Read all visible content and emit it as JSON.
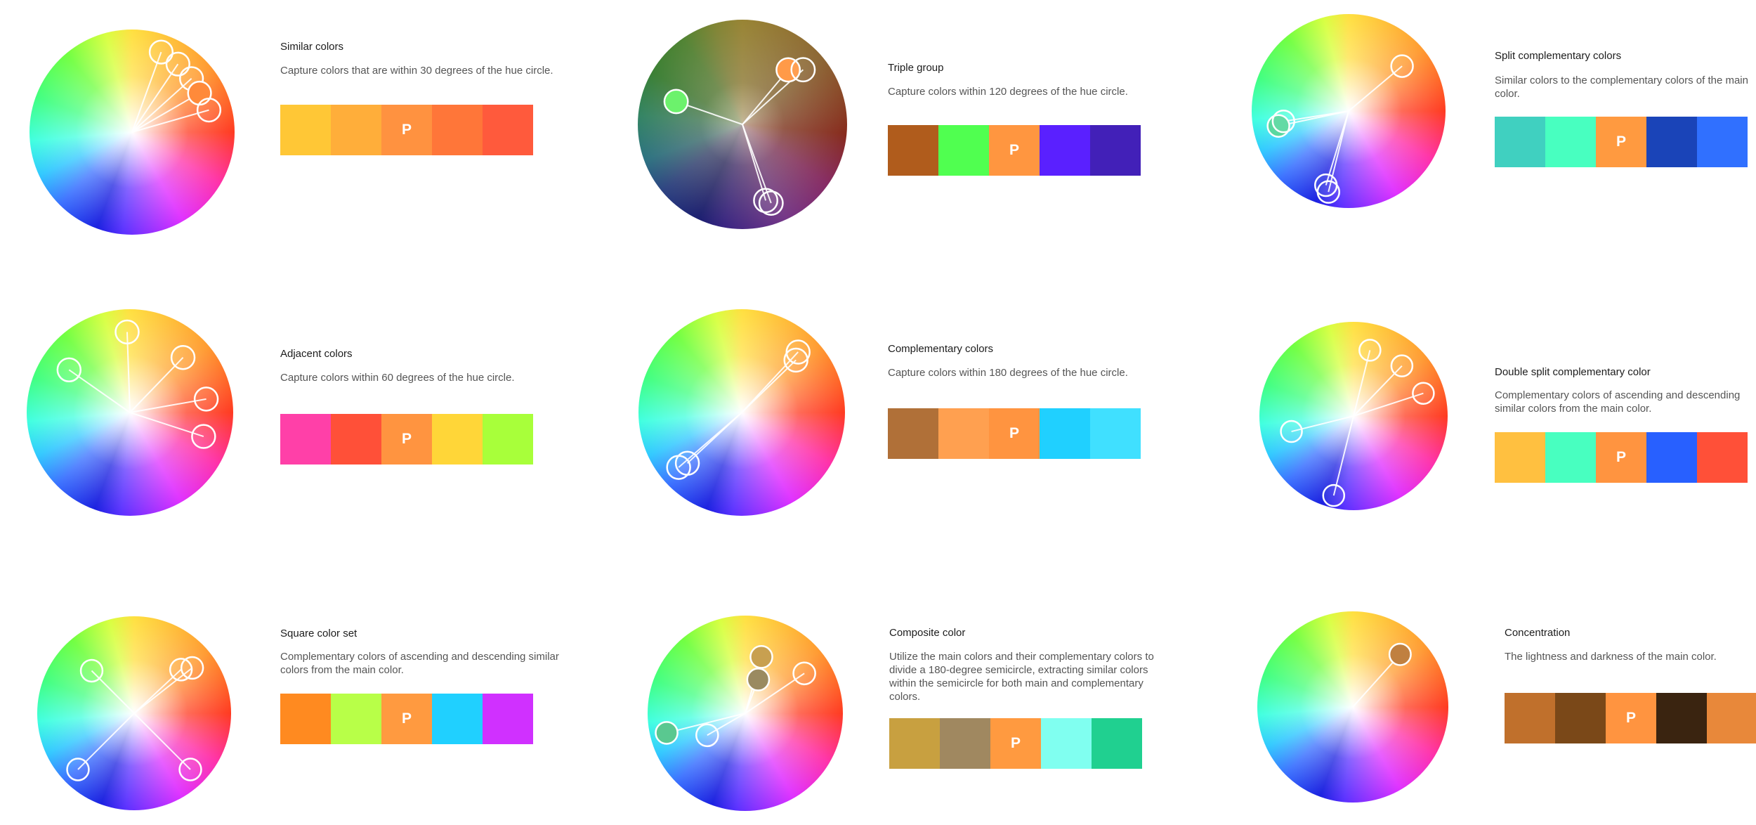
{
  "main_label": "P",
  "schemes": [
    {
      "title": "Similar colors",
      "description": "Capture colors that are within 30 degrees of the hue circle.",
      "swatches": [
        "#ffc736",
        "#ffae3a",
        "#ff9240",
        "#ff7639",
        "#ff5a3c"
      ],
      "main_index": 2,
      "handles": [
        {
          "hue": 20,
          "r": 0.83,
          "fill": "none"
        },
        {
          "hue": 34,
          "r": 0.8,
          "fill": "none"
        },
        {
          "hue": 48,
          "r": 0.78,
          "fill": "none"
        },
        {
          "hue": 60,
          "r": 0.76,
          "fill": "#ff8a3a"
        },
        {
          "hue": 74,
          "r": 0.78,
          "fill": "none"
        }
      ]
    },
    {
      "title": "Triple group",
      "description": "Capture colors within 120 degrees of the hue circle.",
      "swatches": [
        "#b05c1c",
        "#50ff50",
        "#ff9640",
        "#5a20ff",
        "#4220b8"
      ],
      "main_index": 2,
      "handles": [
        {
          "hue": 40,
          "r": 0.68,
          "fill": "#ff9a48"
        },
        {
          "hue": 48,
          "r": 0.78,
          "fill": "none"
        },
        {
          "hue": 160,
          "r": 0.8,
          "fill": "none"
        },
        {
          "hue": 163,
          "r": 0.76,
          "fill": "none"
        },
        {
          "hue": 289,
          "r": 0.67,
          "fill": "#6cf26c"
        }
      ]
    },
    {
      "title": "Split complementary colors",
      "description": "Similar colors to the complementary colors of the main color.",
      "swatches": [
        "#40d0c0",
        "#48ffc0",
        "#ff9a40",
        "#1a44b8",
        "#3070ff"
      ],
      "main_index": 2,
      "handles": [
        {
          "hue": 50,
          "r": 0.72,
          "fill": "none"
        },
        {
          "hue": 194,
          "r": 0.86,
          "fill": "none"
        },
        {
          "hue": 197,
          "r": 0.8,
          "fill": "none"
        },
        {
          "hue": 258,
          "r": 0.74,
          "fill": "#5ad8a0"
        },
        {
          "hue": 261,
          "r": 0.68,
          "fill": "none"
        }
      ]
    },
    {
      "title": "Adjacent colors",
      "description": "Capture colors within 60 degrees of the hue circle.",
      "swatches": [
        "#ff40a8",
        "#ff5038",
        "#ff9440",
        "#ffd638",
        "#a8ff3a"
      ],
      "main_index": 2,
      "handles": [
        {
          "hue": 358,
          "r": 0.78,
          "fill": "none"
        },
        {
          "hue": 44,
          "r": 0.74,
          "fill": "none"
        },
        {
          "hue": 80,
          "r": 0.75,
          "fill": "none"
        },
        {
          "hue": 108,
          "r": 0.75,
          "fill": "none"
        },
        {
          "hue": 305,
          "r": 0.72,
          "fill": "none"
        }
      ]
    },
    {
      "title": "Complementary colors",
      "description": "Capture colors within 180 degrees of the hue circle.",
      "swatches": [
        "#b07038",
        "#ffa050",
        "#ff9440",
        "#20d0ff",
        "#40e0ff"
      ],
      "main_index": 2,
      "handles": [
        {
          "hue": 43,
          "r": 0.8,
          "fill": "none"
        },
        {
          "hue": 46,
          "r": 0.73,
          "fill": "none"
        },
        {
          "hue": 227,
          "r": 0.72,
          "fill": "none"
        },
        {
          "hue": 229,
          "r": 0.81,
          "fill": "none"
        }
      ]
    },
    {
      "title": "Double split complementary color",
      "description": "Complementary colors of ascending and descending similar colors from the main color.",
      "swatches": [
        "#ffc040",
        "#48ffc0",
        "#ff9440",
        "#2860ff",
        "#ff5038"
      ],
      "main_index": 2,
      "handles": [
        {
          "hue": 14,
          "r": 0.72,
          "fill": "none"
        },
        {
          "hue": 44,
          "r": 0.74,
          "fill": "none"
        },
        {
          "hue": 72,
          "r": 0.78,
          "fill": "none"
        },
        {
          "hue": 194,
          "r": 0.87,
          "fill": "none"
        },
        {
          "hue": 256,
          "r": 0.68,
          "fill": "none"
        }
      ]
    },
    {
      "title": "Square color set",
      "description": "Complementary colors of ascending and descending similar colors from the main color.",
      "swatches": [
        "#ff8a20",
        "#b8ff48",
        "#ff9a40",
        "#20d0ff",
        "#d030ff"
      ],
      "main_index": 2,
      "handles": [
        {
          "hue": 47,
          "r": 0.66,
          "fill": "none"
        },
        {
          "hue": 52,
          "r": 0.76,
          "fill": "none"
        },
        {
          "hue": 135,
          "r": 0.82,
          "fill": "none"
        },
        {
          "hue": 225,
          "r": 0.82,
          "fill": "none"
        },
        {
          "hue": 315,
          "r": 0.62,
          "fill": "none"
        }
      ]
    },
    {
      "title": "Composite color",
      "description": "Utilize the main colors and their complementary colors to divide a 180-degree semicircle, extracting similar colors within the semicircle for both main and complementary colors.",
      "swatches": [
        "#c8a040",
        "#a08860",
        "#ff9a40",
        "#80fff0",
        "#20d090"
      ],
      "main_index": 2,
      "handles": [
        {
          "hue": 16,
          "r": 0.6,
          "fill": "#c8a050"
        },
        {
          "hue": 21,
          "r": 0.37,
          "fill": "#9a8a60"
        },
        {
          "hue": 56,
          "r": 0.73,
          "fill": "none"
        },
        {
          "hue": 240,
          "r": 0.45,
          "fill": "none"
        },
        {
          "hue": 256,
          "r": 0.83,
          "fill": "#5ac890"
        }
      ]
    },
    {
      "title": "Concentration",
      "description": "The lightness and darkness of the main color.",
      "swatches": [
        "#c0702c",
        "#7a4818",
        "#ff9440",
        "#3a2410",
        "#e8883a"
      ],
      "main_index": 2,
      "handles": [
        {
          "hue": 42,
          "r": 0.74,
          "fill": "#c08040"
        }
      ]
    }
  ]
}
